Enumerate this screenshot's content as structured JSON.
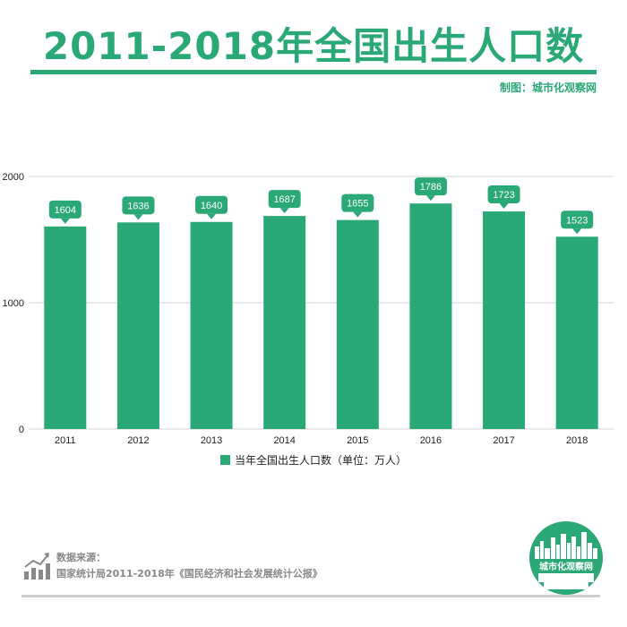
{
  "header": {
    "title": "2011-2018年全国出生人口数",
    "credit": "制图：城市化观察网"
  },
  "chart_data": {
    "type": "bar",
    "categories": [
      "2011",
      "2012",
      "2013",
      "2014",
      "2015",
      "2016",
      "2017",
      "2018"
    ],
    "series": [
      {
        "name": "当年全国出生人口数（单位：万人）",
        "values": [
          1604,
          1636,
          1640,
          1687,
          1655,
          1786,
          1723,
          1523
        ]
      }
    ],
    "data_labels": [
      "1604",
      "1636",
      "1640",
      "1687",
      "1655",
      "1786",
      "1723",
      "1523"
    ],
    "y_ticks": [
      0,
      1000,
      2000
    ],
    "ylim": [
      0,
      2000
    ],
    "grid": true,
    "legend_position": "bottom-center",
    "bar_color": "#2aa876"
  },
  "legend": {
    "label": "当年全国出生人口数（单位：万人）"
  },
  "source": {
    "heading": "数据来源：",
    "text": "国家统计局2011-2018年《国民经济和社会发展统计公报》",
    "icon": "bar-chart-trend-icon"
  },
  "logo": {
    "text": "城市化观察网",
    "icon": "city-skyline-icon"
  },
  "colors": {
    "accent": "#2aa876",
    "text_gray": "#888888",
    "grid": "#d6d6d6"
  }
}
